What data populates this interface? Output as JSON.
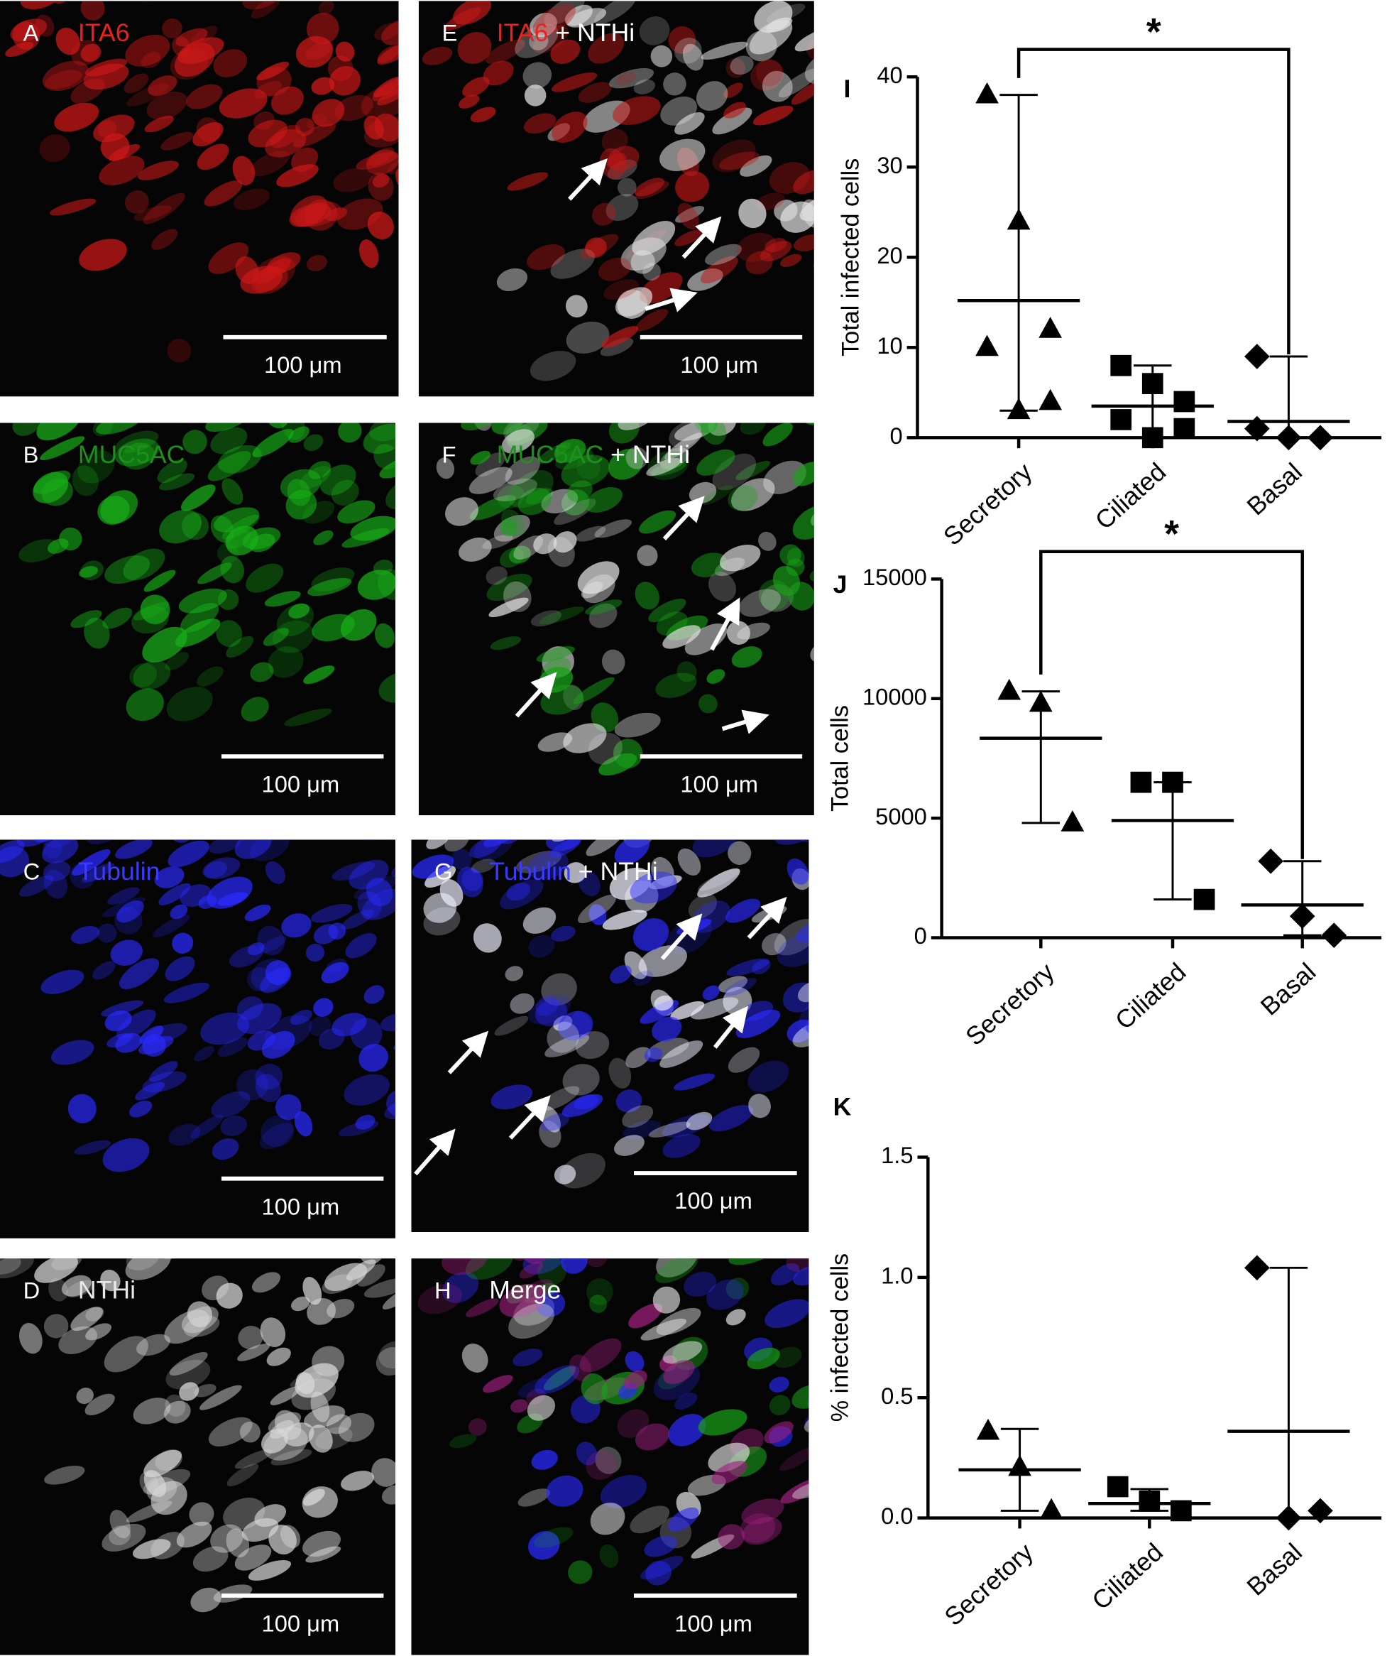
{
  "panels": [
    {
      "letter": "A",
      "labels": [
        {
          "text": "ITA6",
          "color": "#e8231f"
        }
      ],
      "scale_bar": "100 μm"
    },
    {
      "letter": "B",
      "labels": [
        {
          "text": "MUC5AC",
          "color": "#1f8f1f"
        }
      ],
      "scale_bar": "100 μm"
    },
    {
      "letter": "C",
      "labels": [
        {
          "text": "Tubulin",
          "color": "#3b3bff"
        }
      ],
      "scale_bar": "100 μm"
    },
    {
      "letter": "D",
      "labels": [
        {
          "text": "NTHi",
          "color": "#e8e8e8"
        }
      ],
      "scale_bar": "100 μm"
    },
    {
      "letter": "E",
      "labels": [
        {
          "text": "ITA6",
          "color": "#e8231f"
        },
        {
          "text": " + NTHi",
          "color": "#ffffff"
        }
      ],
      "scale_bar": "100 μm"
    },
    {
      "letter": "F",
      "labels": [
        {
          "text": "MUC5AC",
          "color": "#1f8f1f"
        },
        {
          "text": " + NTHi",
          "color": "#ffffff"
        }
      ],
      "scale_bar": "100 μm"
    },
    {
      "letter": "G",
      "labels": [
        {
          "text": "Tubulin",
          "color": "#3b3bff"
        },
        {
          "text": " + NTHi",
          "color": "#ffffff"
        }
      ],
      "scale_bar": "100 μm"
    },
    {
      "letter": "H",
      "labels": [
        {
          "text": "Merge",
          "color": "#ffffff"
        }
      ],
      "scale_bar": "100 μm"
    }
  ],
  "chart_data": [
    {
      "type": "dot",
      "panel_label": "I",
      "y_label": "Total infected cells",
      "categories": [
        "Secretory",
        "Ciliated",
        "Basal"
      ],
      "markers": [
        "triangle",
        "square",
        "diamond"
      ],
      "points": [
        [
          38,
          24,
          12,
          10,
          3,
          4
        ],
        [
          8,
          6,
          4,
          2,
          0,
          1
        ],
        [
          9,
          0,
          0,
          1,
          0,
          0
        ]
      ],
      "means": [
        15.2,
        3.5,
        1.8
      ],
      "whiskers": [
        [
          3,
          38
        ],
        [
          0,
          8
        ],
        [
          0,
          9
        ]
      ],
      "ylim": [
        0,
        40
      ],
      "yticks": [
        0,
        10,
        20,
        30,
        40
      ],
      "significance": {
        "between": [
          "Secretory",
          "Basal"
        ],
        "label": "*"
      }
    },
    {
      "type": "dot",
      "panel_label": "J",
      "y_label": "Total cells",
      "categories": [
        "Secretory",
        "Ciliated",
        "Basal"
      ],
      "markers": [
        "triangle",
        "square",
        "diamond"
      ],
      "points": [
        [
          10300,
          9800,
          4800
        ],
        [
          6500,
          6500,
          1600
        ],
        [
          3200,
          900,
          100
        ]
      ],
      "means": [
        8340,
        4900,
        1370
      ],
      "whiskers": [
        [
          4800,
          10300
        ],
        [
          1600,
          6500
        ],
        [
          100,
          3200
        ]
      ],
      "ylim": [
        0,
        15000
      ],
      "yticks": [
        0,
        5000,
        10000,
        15000
      ],
      "significance": {
        "between": [
          "Secretory",
          "Basal"
        ],
        "label": "*"
      }
    },
    {
      "type": "dot",
      "panel_label": "K",
      "y_label": "% infected cells",
      "categories": [
        "Secretory",
        "Ciliated",
        "Basal"
      ],
      "markers": [
        "triangle",
        "square",
        "diamond"
      ],
      "points": [
        [
          0.36,
          0.21,
          0.03
        ],
        [
          0.13,
          0.07,
          0.03
        ],
        [
          1.04,
          0,
          0.03
        ]
      ],
      "means": [
        0.2,
        0.06,
        0.36
      ],
      "whiskers": [
        [
          0.03,
          0.37
        ],
        [
          0.03,
          0.12
        ],
        [
          0,
          1.04
        ]
      ],
      "ylim": [
        0,
        1.5
      ],
      "yticks": [
        {
          "value": 0,
          "label": "0.0"
        },
        0.5,
        {
          "value": 1,
          "label": "1.0"
        },
        1.5
      ]
    }
  ]
}
